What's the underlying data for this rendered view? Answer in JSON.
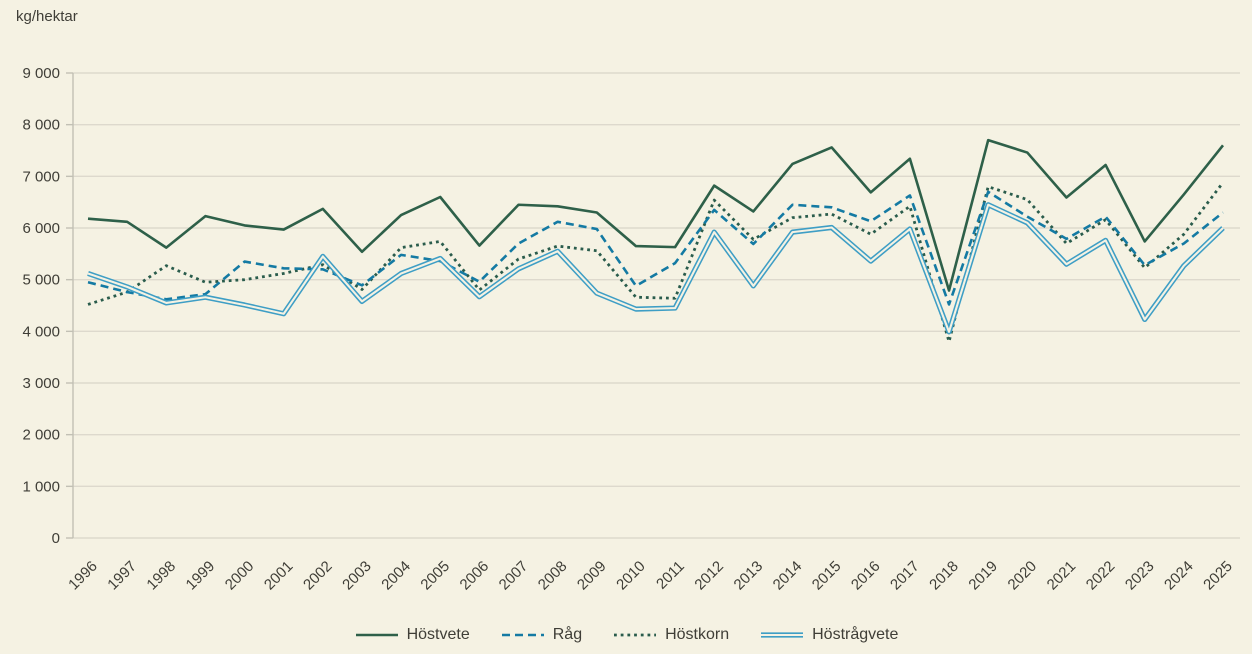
{
  "unit_label": "kg/hektar",
  "colors": {
    "background": "#f5f2e3",
    "gridline": "#ddd9cd",
    "axis": "#c2c0b4",
    "text": "#3f3e37",
    "hostvete": "#2e6049",
    "rag": "#147aa3",
    "hostkorn": "#2a5c4c",
    "hostragvete": "#3e9ec5"
  },
  "chart_data": {
    "type": "line",
    "title": "",
    "ylabel": "kg/hektar",
    "xlabel": "",
    "grid": "horizontal",
    "legend_position": "bottom-center",
    "ylim": [
      0,
      9000
    ],
    "ytick_step": 1000,
    "ytick_labels": [
      "0",
      "1 000",
      "2 000",
      "3 000",
      "4 000",
      "5 000",
      "6 000",
      "7 000",
      "8 000",
      "9 000"
    ],
    "x": [
      1996,
      1997,
      1998,
      1999,
      2000,
      2001,
      2002,
      2003,
      2004,
      2005,
      2006,
      2007,
      2008,
      2009,
      2010,
      2011,
      2012,
      2013,
      2014,
      2015,
      2016,
      2017,
      2018,
      2019,
      2020,
      2021,
      2022,
      2023,
      2024,
      2025
    ],
    "series": [
      {
        "name": "Höstvete",
        "style": "solid",
        "color": "#2e6049",
        "values": [
          6180,
          6120,
          5620,
          6230,
          6050,
          5970,
          6370,
          5540,
          6250,
          6600,
          5660,
          6450,
          6420,
          6300,
          5650,
          5630,
          6820,
          6320,
          7240,
          7560,
          6690,
          7340,
          4790,
          7700,
          7460,
          6590,
          7220,
          5740,
          6650,
          7600
        ]
      },
      {
        "name": "Råg",
        "style": "dashed",
        "color": "#147aa3",
        "values": [
          4950,
          4760,
          4620,
          4720,
          5350,
          5220,
          5200,
          4890,
          5480,
          5360,
          4960,
          5700,
          6120,
          5980,
          4880,
          5320,
          6350,
          5690,
          6450,
          6400,
          6130,
          6630,
          4520,
          6700,
          6220,
          5790,
          6220,
          5280,
          5700,
          6300
        ]
      },
      {
        "name": "Höstkorn",
        "style": "dotted",
        "color": "#2a5c4c",
        "values": [
          4520,
          4760,
          5270,
          4950,
          5000,
          5120,
          5290,
          4810,
          5620,
          5740,
          4800,
          5400,
          5650,
          5560,
          4660,
          4640,
          6540,
          5780,
          6200,
          6270,
          5880,
          6420,
          3800,
          6800,
          6550,
          5700,
          6160,
          5230,
          5880,
          6880
        ]
      },
      {
        "name": "Höstrågvete",
        "style": "double",
        "color": "#3e9ec5",
        "values": [
          5120,
          4860,
          4550,
          4660,
          4510,
          4340,
          5450,
          4580,
          5120,
          5410,
          4670,
          5210,
          5550,
          4740,
          4430,
          4450,
          5920,
          4880,
          5920,
          6010,
          5360,
          5980,
          3990,
          6450,
          6100,
          5300,
          5760,
          4230,
          5270,
          6000
        ]
      }
    ]
  }
}
